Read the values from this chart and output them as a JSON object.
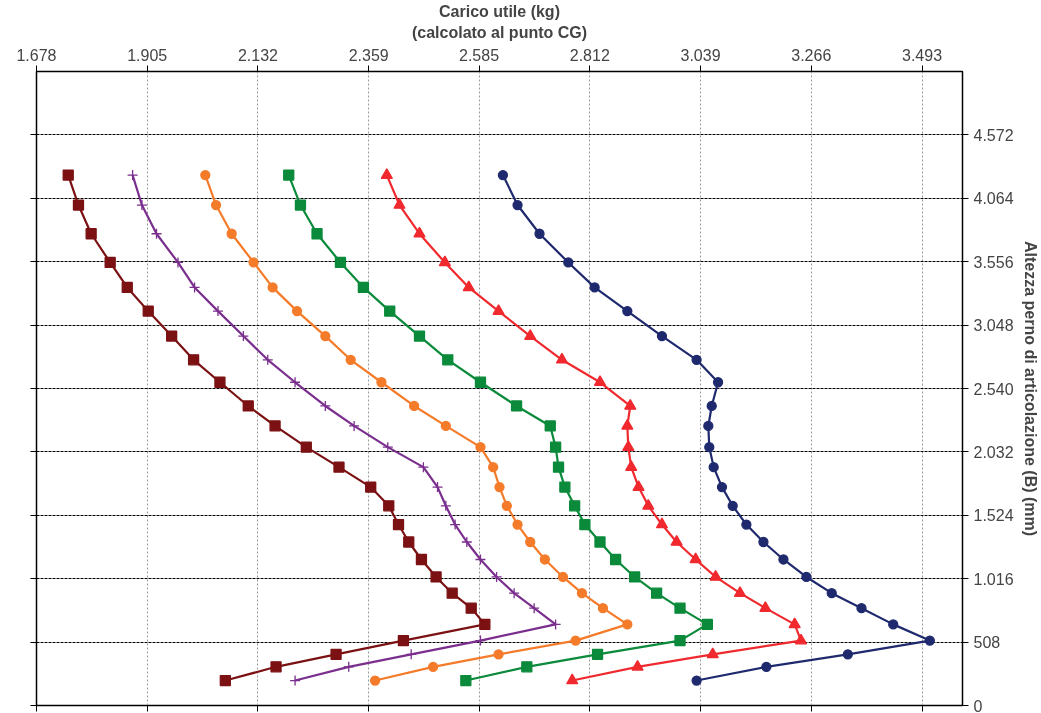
{
  "chart_data": {
    "type": "line",
    "xlabel": "Carico utile (kg)\n(calcolato al punto CG)",
    "ylabel": "Altezza perno di articolazione (B) (mm)",
    "xlim": [
      1.678,
      3.576
    ],
    "ylim": [
      0,
      5080
    ],
    "xticks": [
      1.678,
      1.905,
      2.132,
      2.359,
      2.585,
      2.812,
      3.039,
      3.266,
      3.493
    ],
    "yticks": [
      0,
      508,
      {
        "value": 1016,
        "label": "1.016"
      },
      {
        "value": 1524,
        "label": "1.524"
      },
      {
        "value": 2032,
        "label": "2.032"
      },
      {
        "value": 2540,
        "label": "2.540"
      },
      {
        "value": 3048,
        "label": "3.048"
      },
      {
        "value": 3556,
        "label": "3.556"
      },
      {
        "value": 4064,
        "label": "4.064"
      },
      {
        "value": 4572,
        "label": "4.572"
      }
    ],
    "grid": true,
    "line_style": "solid",
    "series": [
      {
        "color": "#7b1113",
        "marker": "square",
        "x": [
          1.743,
          1.764,
          1.79,
          1.829,
          1.864,
          1.907,
          1.955,
          2.0,
          2.054,
          2.112,
          2.167,
          2.231,
          2.298,
          2.363,
          2.4,
          2.42,
          2.441,
          2.467,
          2.497,
          2.53,
          2.569,
          2.597,
          2.43,
          2.292,
          2.169,
          2.065
        ],
        "values": [
          4250,
          4010,
          3780,
          3550,
          3350,
          3160,
          2960,
          2770,
          2590,
          2400,
          2240,
          2070,
          1910,
          1750,
          1600,
          1450,
          1310,
          1170,
          1030,
          900,
          780,
          650,
          520,
          410,
          310,
          200
        ]
      },
      {
        "color": "#7a2e8e",
        "marker": "cross",
        "x": [
          1.875,
          1.894,
          1.924,
          1.968,
          2.002,
          2.05,
          2.102,
          2.152,
          2.208,
          2.27,
          2.329,
          2.398,
          2.471,
          2.5,
          2.517,
          2.536,
          2.56,
          2.588,
          2.621,
          2.657,
          2.698,
          2.742,
          2.588,
          2.446,
          2.318,
          2.208
        ],
        "values": [
          4250,
          4010,
          3780,
          3550,
          3350,
          3160,
          2960,
          2770,
          2590,
          2400,
          2240,
          2070,
          1910,
          1750,
          1600,
          1450,
          1310,
          1170,
          1030,
          900,
          780,
          650,
          520,
          410,
          310,
          200
        ]
      },
      {
        "color": "#f47b2a",
        "marker": "circle",
        "x": [
          2.024,
          2.046,
          2.078,
          2.123,
          2.162,
          2.212,
          2.27,
          2.322,
          2.385,
          2.452,
          2.517,
          2.588,
          2.614,
          2.627,
          2.642,
          2.664,
          2.69,
          2.72,
          2.757,
          2.796,
          2.839,
          2.889,
          2.783,
          2.625,
          2.491,
          2.372
        ],
        "values": [
          4250,
          4010,
          3780,
          3550,
          3350,
          3160,
          2960,
          2770,
          2590,
          2400,
          2240,
          2070,
          1910,
          1750,
          1600,
          1450,
          1310,
          1170,
          1030,
          900,
          780,
          650,
          520,
          410,
          310,
          200
        ]
      },
      {
        "color": "#0a8a3a",
        "marker": "square",
        "x": [
          2.195,
          2.219,
          2.253,
          2.301,
          2.348,
          2.402,
          2.463,
          2.521,
          2.588,
          2.662,
          2.731,
          2.742,
          2.748,
          2.761,
          2.781,
          2.802,
          2.833,
          2.865,
          2.904,
          2.949,
          2.997,
          3.053,
          2.997,
          2.828,
          2.683,
          2.558
        ],
        "values": [
          4250,
          4010,
          3780,
          3550,
          3350,
          3160,
          2960,
          2770,
          2590,
          2400,
          2240,
          2070,
          1910,
          1750,
          1600,
          1450,
          1310,
          1170,
          1030,
          900,
          780,
          650,
          520,
          410,
          310,
          200
        ]
      },
      {
        "color": "#f0292e",
        "marker": "triangle",
        "x": [
          2.396,
          2.422,
          2.463,
          2.515,
          2.564,
          2.625,
          2.69,
          2.755,
          2.833,
          2.895,
          2.889,
          2.891,
          2.897,
          2.912,
          2.932,
          2.96,
          2.99,
          3.029,
          3.07,
          3.12,
          3.172,
          3.232,
          3.245,
          3.064,
          2.91,
          2.776
        ],
        "values": [
          4250,
          4010,
          3780,
          3550,
          3350,
          3160,
          2960,
          2770,
          2590,
          2400,
          2240,
          2070,
          1910,
          1750,
          1600,
          1450,
          1310,
          1170,
          1030,
          900,
          780,
          650,
          520,
          410,
          310,
          200
        ]
      },
      {
        "color": "#1f2a6e",
        "marker": "circle",
        "x": [
          2.634,
          2.664,
          2.709,
          2.768,
          2.822,
          2.889,
          2.96,
          3.031,
          3.075,
          3.062,
          3.055,
          3.057,
          3.066,
          3.083,
          3.105,
          3.133,
          3.168,
          3.209,
          3.256,
          3.308,
          3.369,
          3.434,
          3.509,
          3.341,
          3.174,
          3.031
        ],
        "values": [
          4250,
          4010,
          3780,
          3550,
          3350,
          3160,
          2960,
          2770,
          2590,
          2400,
          2240,
          2070,
          1910,
          1750,
          1600,
          1450,
          1310,
          1170,
          1030,
          900,
          780,
          650,
          520,
          410,
          310,
          200
        ]
      }
    ]
  }
}
